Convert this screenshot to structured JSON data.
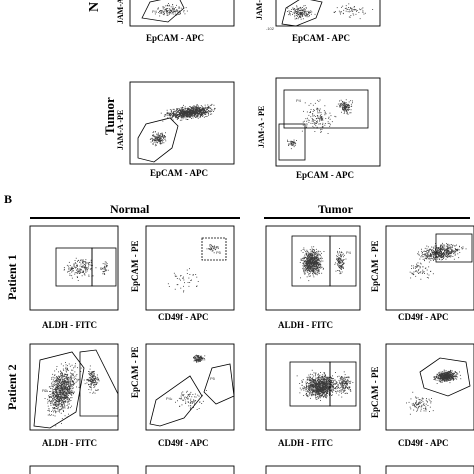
{
  "section_b_label": "B",
  "headers": {
    "normal": "Normal",
    "tumor": "Tumor"
  },
  "row_labels": {
    "top_normal_partial": "N",
    "tumor_row": "Tumor",
    "patient1": "Patient 1",
    "patient2": "Patient 2"
  },
  "axis_labels": {
    "epcam_apc": "EpCAM - APC",
    "jam_a_pe": "JAM-A -PE",
    "jam_a_pe_alt": "JAM-A - PE",
    "aldh_fitc": "ALDH - FITC",
    "epcam_pe": "EpCAM - PE",
    "cd49f_apc": "CD49f - APC"
  },
  "gate_labels": {
    "p1": "P1",
    "p2": "P2",
    "p3": "P3",
    "p4": "P4",
    "p5": "P5",
    "p6": "P6"
  },
  "colors": {
    "ink": "#000000",
    "dots": "#3a3a3a",
    "background": "#ffffff"
  }
}
